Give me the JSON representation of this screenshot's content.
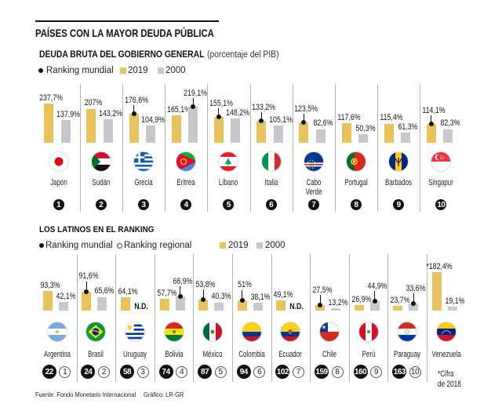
{
  "header": {
    "title": "PAÍSES CON LA MAYOR DEUDA PÚBLICA",
    "subtitle_bold": "DEUDA BRUTA DEL GOBIERNO GENERAL",
    "subtitle_light": "(porcentaje del PIB)"
  },
  "legend_top": {
    "ranking_mundial": "Ranking mundial",
    "series_2019": "2019",
    "series_2000": "2000"
  },
  "section_latinos": {
    "title": "LOS LATINOS EN EL RANKING",
    "legend": {
      "ranking_mundial": "Ranking mundial",
      "ranking_regional": "Ranking regional",
      "series_2019": "2019",
      "series_2000": "2000"
    },
    "footnote": [
      "*Cifra",
      "de 2018"
    ]
  },
  "footer": {
    "source": "Fuente: Fondo Monetario Internacional",
    "credit": "Gráfico: LR-GR"
  },
  "colors": {
    "series_2019": "#E8C25A",
    "series_2000": "#C7C8CD",
    "ranking": "#111111"
  },
  "chart_data": [
    {
      "type": "bar",
      "title": "DEUDA BRUTA DEL GOBIERNO GENERAL",
      "ylabel": "porcentaje del PIB",
      "categories": [
        "Japón",
        "Sudán",
        "Grecia",
        "Eritrea",
        "Líbano",
        "Italia",
        "Cabo Verde",
        "Portugal",
        "Barbados",
        "Singapur"
      ],
      "flags": [
        "japan-flag",
        "sudan-flag",
        "greece-flag",
        "eritrea-flag",
        "lebanon-flag",
        "italy-flag",
        "cape-verde-flag",
        "portugal-flag",
        "barbados-flag",
        "singapore-flag"
      ],
      "series": [
        {
          "name": "2019",
          "values": [
            237.7,
            207,
            176.6,
            165.1,
            155.1,
            133.2,
            123.5,
            117.6,
            115.4,
            114.1
          ],
          "labels": [
            "237,7%",
            "207%",
            "176,6%",
            "165,1%",
            "155,1%",
            "133,2%",
            "123,5%",
            "117,6%",
            "115,4%",
            "114,1%"
          ]
        },
        {
          "name": "2000",
          "values": [
            137.9,
            143.2,
            104.9,
            219.1,
            148.2,
            105.1,
            82.6,
            50.3,
            61.3,
            82.3
          ],
          "labels": [
            "137,9%",
            "143,2%",
            "104,9%",
            "219,1%",
            "148,2%",
            "105,1%",
            "82,6%",
            "50,3%",
            "61,3%",
            "82,3%"
          ]
        }
      ],
      "leader_series": [
        null,
        null,
        "2019",
        "2000",
        "2019",
        "2019",
        "2019",
        null,
        null,
        "2019"
      ],
      "ranking_mundial": [
        1,
        2,
        3,
        4,
        5,
        6,
        7,
        8,
        9,
        10
      ]
    },
    {
      "type": "bar",
      "title": "LOS LATINOS EN EL RANKING",
      "ylabel": "porcentaje del PIB",
      "categories": [
        "Argentina",
        "Brasil",
        "Uruguay",
        "Bolivia",
        "México",
        "Colombia",
        "Ecuador",
        "Chile",
        "Perú",
        "Paraguay",
        "Venezuela"
      ],
      "flags": [
        "argentina-flag",
        "brazil-flag",
        "uruguay-flag",
        "bolivia-flag",
        "mexico-flag",
        "colombia-flag",
        "ecuador-flag",
        "chile-flag",
        "peru-flag",
        "paraguay-flag",
        "venezuela-flag"
      ],
      "series": [
        {
          "name": "2019",
          "values": [
            93.3,
            91.6,
            64.1,
            57.7,
            53.8,
            51,
            49.1,
            27.5,
            26.9,
            23.7,
            182.4
          ],
          "labels": [
            "93,3%",
            "91,6%",
            "64,1%",
            "57,7%",
            "53,8%",
            "51%",
            "49,1%",
            "27,5%",
            "26,9%",
            "23,7%",
            "*182,4%"
          ]
        },
        {
          "name": "2000",
          "values": [
            42.1,
            65.6,
            null,
            66.9,
            40.3,
            38.1,
            null,
            13.2,
            44.9,
            33.6,
            19.1
          ],
          "labels": [
            "42,1%",
            "65,6%",
            "N.D.",
            "66,9%",
            "40,3%",
            "38,1%",
            "N.D.",
            "13,2%",
            "44,9%",
            "33,6%",
            "19,1%"
          ]
        }
      ],
      "leader_series": [
        null,
        "2019",
        null,
        "2000",
        "2019",
        "2019",
        null,
        "2019",
        "2000",
        "2000",
        null
      ],
      "ranking_mundial": [
        22,
        24,
        58,
        74,
        87,
        94,
        102,
        159,
        160,
        163,
        null
      ],
      "ranking_regional": [
        1,
        2,
        3,
        4,
        5,
        6,
        7,
        8,
        9,
        10,
        null
      ]
    }
  ]
}
